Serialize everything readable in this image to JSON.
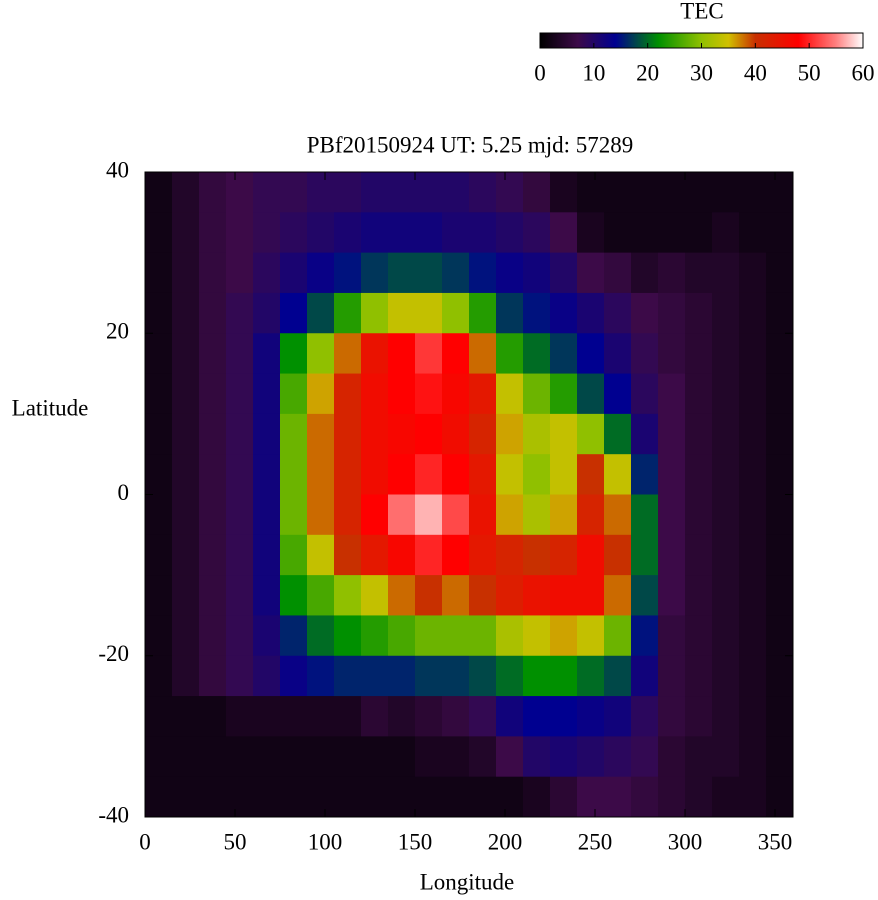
{
  "chart_data": {
    "type": "heatmap",
    "title": "PBf20150924  UT: 5.25  mjd: 57289",
    "x_label": "Longitude",
    "y_label": "Latitude",
    "xlim": [
      0,
      360
    ],
    "ylim": [
      -40,
      40
    ],
    "xticks": [
      0,
      50,
      100,
      150,
      200,
      250,
      300,
      350
    ],
    "yticks": [
      40,
      20,
      0,
      -20,
      -40
    ],
    "x": [
      0,
      15,
      30,
      45,
      60,
      75,
      90,
      105,
      120,
      135,
      150,
      165,
      180,
      195,
      210,
      225,
      240,
      255,
      270,
      285,
      300,
      315,
      330,
      345,
      360
    ],
    "y": [
      40,
      35,
      30,
      25,
      20,
      15,
      10,
      5,
      0,
      -5,
      -10,
      -15,
      -20,
      -25,
      -30,
      -35,
      -40
    ],
    "values": [
      [
        2,
        2,
        2,
        2,
        2,
        2,
        2,
        2,
        2,
        2,
        2,
        2,
        2,
        2,
        2,
        2
      ],
      [
        4,
        4,
        4,
        4,
        4,
        4,
        4,
        4,
        4,
        4,
        4,
        4,
        4,
        2,
        2,
        2
      ],
      [
        6,
        6,
        6,
        6,
        6,
        6,
        6,
        6,
        6,
        6,
        6,
        6,
        6,
        2,
        2,
        2
      ],
      [
        7,
        7,
        7,
        8,
        8,
        8,
        8,
        8,
        8,
        8,
        8,
        8,
        8,
        3,
        2,
        2
      ],
      [
        8,
        8,
        9,
        10,
        12,
        12,
        12,
        12,
        12,
        12,
        12,
        11,
        10,
        3,
        2,
        2
      ],
      [
        8,
        9,
        11,
        14,
        22,
        26,
        28,
        28,
        28,
        26,
        22,
        16,
        13,
        3,
        2,
        2
      ],
      [
        9,
        10,
        13,
        18,
        30,
        36,
        38,
        38,
        38,
        34,
        26,
        20,
        15,
        3,
        2,
        2
      ],
      [
        9,
        11,
        15,
        24,
        38,
        42,
        42,
        42,
        42,
        40,
        30,
        22,
        16,
        3,
        2,
        2
      ],
      [
        10,
        12,
        17,
        30,
        45,
        46,
        46,
        46,
        48,
        44,
        34,
        24,
        16,
        5,
        2,
        2
      ],
      [
        10,
        12,
        18,
        34,
        48,
        48,
        47,
        48,
        54,
        47,
        38,
        26,
        16,
        4,
        2,
        2
      ],
      [
        10,
        12,
        18,
        34,
        51,
        49,
        48,
        50,
        57,
        50,
        40,
        28,
        17,
        5,
        3,
        2
      ],
      [
        10,
        11,
        17,
        30,
        48,
        47,
        46,
        48,
        52,
        48,
        38,
        28,
        17,
        6,
        3,
        2
      ],
      [
        9,
        11,
        15,
        24,
        38,
        44,
        42,
        44,
        45,
        44,
        40,
        28,
        18,
        8,
        4,
        2
      ],
      [
        8,
        10,
        13,
        17,
        24,
        34,
        36,
        34,
        36,
        42,
        43,
        32,
        20,
        12,
        7,
        2
      ],
      [
        6,
        9,
        12,
        15,
        20,
        28,
        32,
        30,
        32,
        40,
        45,
        34,
        22,
        14,
        10,
        3
      ],
      [
        3,
        7,
        10,
        13,
        17,
        24,
        34,
        34,
        36,
        42,
        46,
        36,
        22,
        14,
        11,
        5
      ],
      [
        2,
        3,
        7,
        11,
        14,
        18,
        30,
        40,
        42,
        46,
        46,
        34,
        20,
        13,
        10,
        7
      ],
      [
        2,
        2,
        6,
        9,
        11,
        14,
        20,
        34,
        38,
        40,
        38,
        28,
        18,
        12,
        9,
        7
      ],
      [
        2,
        2,
        4,
        7,
        8,
        9,
        11,
        16,
        20,
        20,
        18,
        15,
        12,
        9,
        8,
        6
      ],
      [
        2,
        2,
        5,
        6,
        6,
        7,
        7,
        7,
        7,
        7,
        7,
        6,
        6,
        6,
        5,
        5
      ],
      [
        2,
        2,
        4,
        5,
        5,
        5,
        5,
        5,
        5,
        5,
        5,
        5,
        5,
        5,
        4,
        4
      ],
      [
        2,
        3,
        4,
        4,
        4,
        4,
        4,
        4,
        4,
        4,
        4,
        4,
        4,
        4,
        4,
        3
      ],
      [
        2,
        2,
        3,
        3,
        3,
        3,
        3,
        3,
        3,
        3,
        3,
        3,
        3,
        3,
        3,
        3
      ],
      [
        2,
        2,
        2,
        2,
        2,
        2,
        2,
        2,
        2,
        2,
        2,
        2,
        2,
        2,
        2,
        2
      ]
    ],
    "colorbar": {
      "label": "TEC",
      "lim": [
        0,
        60
      ],
      "ticks": [
        0,
        10,
        20,
        30,
        40,
        50,
        60
      ],
      "colormap": [
        {
          "value": 0,
          "color": "#000000"
        },
        {
          "value": 7,
          "color": "#3c0a48"
        },
        {
          "value": 14,
          "color": "#000090"
        },
        {
          "value": 22,
          "color": "#009000"
        },
        {
          "value": 30,
          "color": "#90c000"
        },
        {
          "value": 35,
          "color": "#d0c000"
        },
        {
          "value": 40,
          "color": "#c83000"
        },
        {
          "value": 48,
          "color": "#ff0000"
        },
        {
          "value": 55,
          "color": "#ff8080"
        },
        {
          "value": 60,
          "color": "#ffffff"
        }
      ]
    }
  }
}
